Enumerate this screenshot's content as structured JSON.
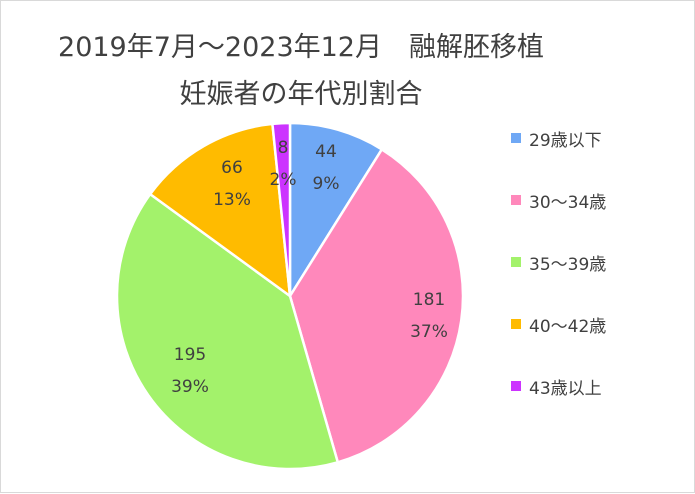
{
  "chart_data": {
    "type": "pie",
    "title": "2019年7月～2023年12月　融解胚移植",
    "subtitle": "妊娠者の年代別割合",
    "categories": [
      "29歳以下",
      "30～34歳",
      "35～39歳",
      "40～42歳",
      "43歳以上"
    ],
    "values": [
      44,
      181,
      195,
      66,
      8
    ],
    "percent_labels": [
      "9%",
      "37%",
      "39%",
      "13%",
      "2%"
    ],
    "colors": [
      "#6fa8f5",
      "#ff88bb",
      "#a3f26b",
      "#ffbb00",
      "#cc33ff"
    ],
    "legend_position": "right"
  }
}
